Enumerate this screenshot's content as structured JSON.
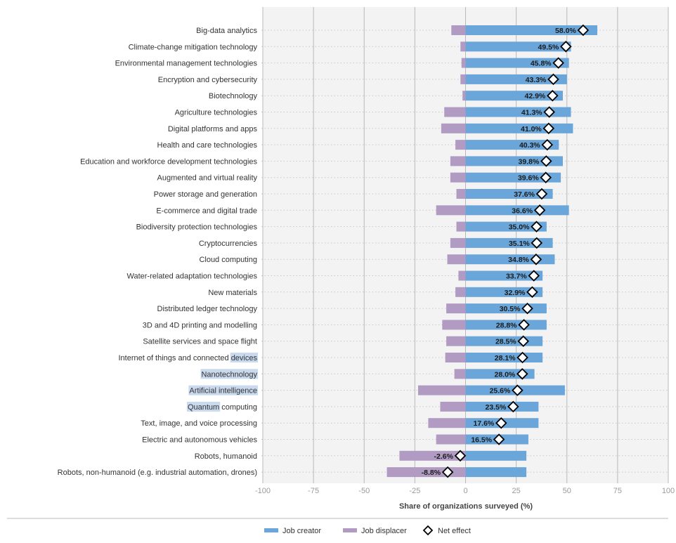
{
  "chart_data": {
    "type": "bar",
    "xlabel": "Share of organizations surveyed (%)",
    "xlim": [
      -100,
      100
    ],
    "xticks": [
      -100,
      -75,
      -50,
      -25,
      0,
      25,
      50,
      75,
      100
    ],
    "grid": true,
    "legend_position": "bottom",
    "colors": {
      "job_creator": "#6aa6d9",
      "job_displacer": "#b19bc3",
      "net_effect": "#000000"
    },
    "categories": [
      "Big-data analytics",
      "Climate-change mitigation technology",
      "Environmental management technologies",
      "Encryption and cybersecurity",
      "Biotechnology",
      "Agriculture technologies",
      "Digital platforms and apps",
      "Health and care technologies",
      "Education and workforce development technologies",
      "Augmented and virtual reality",
      "Power storage and generation",
      "E-commerce and digital trade",
      "Biodiversity protection technologies",
      "Cryptocurrencies",
      "Cloud computing",
      "Water-related adaptation technologies",
      "New materials",
      "Distributed ledger technology",
      "3D and 4D printing and modelling",
      "Satellite services and space flight",
      "Internet of things and connected devices",
      "Nanotechnology",
      "Artificial intelligence",
      "Quantum computing",
      "Text, image, and voice processing",
      "Electric and autonomous vehicles",
      "Robots, humanoid",
      "Robots, non-humanoid (e.g. industrial automation, drones)"
    ],
    "series": [
      {
        "name": "Job creator",
        "values": [
          65,
          52,
          51,
          50,
          48,
          52,
          53,
          46,
          48,
          47,
          43,
          51,
          40,
          43,
          44,
          38,
          38,
          40,
          40,
          38,
          38,
          34,
          49,
          36,
          36,
          31,
          30,
          30
        ]
      },
      {
        "name": "Job displacer",
        "values": [
          -7,
          -2.5,
          -2,
          -2.5,
          -1.5,
          -10.5,
          -12,
          -5,
          -7.5,
          -7.5,
          -4.5,
          -14.5,
          -4.5,
          -7.5,
          -9,
          -3.5,
          -5,
          -9.5,
          -11.5,
          -9.5,
          -10,
          -5.5,
          -23.4,
          -12.5,
          -18.4,
          -14.5,
          -32.6,
          -38.8
        ]
      },
      {
        "name": "Net effect",
        "values": [
          58.0,
          49.5,
          45.8,
          43.3,
          42.9,
          41.3,
          41.0,
          40.3,
          39.8,
          39.6,
          37.6,
          36.6,
          35.0,
          35.1,
          34.8,
          33.7,
          32.9,
          30.5,
          28.8,
          28.5,
          28.1,
          28.0,
          25.6,
          23.5,
          17.6,
          16.5,
          -2.6,
          -8.8
        ]
      }
    ],
    "net_labels": [
      "58.0%",
      "49.5%",
      "45.8%",
      "43.3%",
      "42.9%",
      "41.3%",
      "41.0%",
      "40.3%",
      "39.8%",
      "39.6%",
      "37.6%",
      "36.6%",
      "35.0%",
      "35.1%",
      "34.8%",
      "33.7%",
      "32.9%",
      "30.5%",
      "28.8%",
      "28.5%",
      "28.1%",
      "28.0%",
      "25.6%",
      "23.5%",
      "17.6%",
      "16.5%",
      "-2.6%",
      "-8.8%"
    ]
  },
  "legend": {
    "items": [
      {
        "label": "Job creator",
        "marker": "bar",
        "color": "#6aa6d9"
      },
      {
        "label": "Job displacer",
        "marker": "bar",
        "color": "#b19bc3"
      },
      {
        "label": "Net effect",
        "marker": "diamond-icon",
        "color": "#000000"
      }
    ]
  }
}
